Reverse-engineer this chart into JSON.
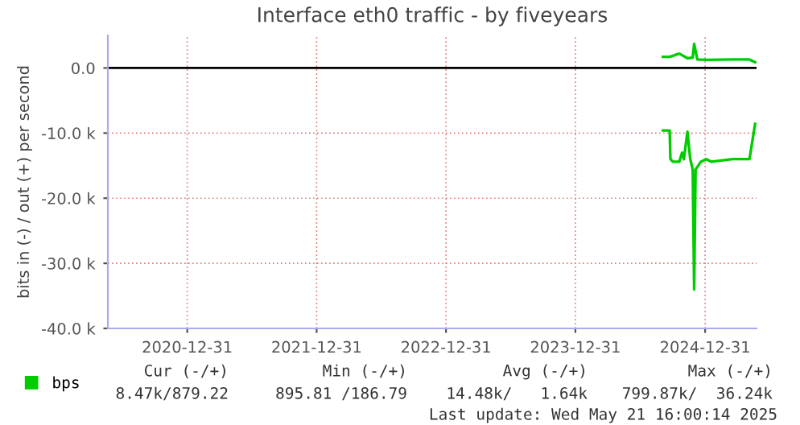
{
  "chart_data": {
    "type": "line",
    "title": "Interface eth0 traffic - by fiveyears",
    "ylabel": "bits in (-) / out (+) per second",
    "xlim": [
      "2020-05-21",
      "2025-05-25"
    ],
    "xticks": [
      "2020-12-31",
      "2021-12-31",
      "2022-12-31",
      "2023-12-31",
      "2024-12-31"
    ],
    "ylim": [
      -40000,
      5000
    ],
    "yticks": [
      {
        "value": 0,
        "label": "0.0"
      },
      {
        "value": -10000,
        "label": "-10.0 k"
      },
      {
        "value": -20000,
        "label": "-20.0 k"
      },
      {
        "value": -30000,
        "label": "-30.0 k"
      },
      {
        "value": -40000,
        "label": "-40.0 k"
      }
    ],
    "grid": true,
    "legend": "bottom left",
    "ref_lines": [
      {
        "axis": "y",
        "value": 0,
        "color": "#000000"
      }
    ],
    "series": [
      {
        "name": "bps",
        "color": "#00cc00",
        "x": [
          "2024-09-03",
          "2024-09-22",
          "2024-09-24",
          "2024-10-01",
          "2024-10-19",
          "2024-10-27",
          "2024-11-01",
          "2024-11-11",
          "2024-11-19",
          "2024-11-26",
          "2024-11-30",
          "2024-12-04",
          "2024-12-19",
          "2025-01-03",
          "2025-01-18",
          "2025-03-19",
          "2025-05-05",
          "2025-05-21"
        ],
        "values": [
          -9600,
          -9600,
          -14000,
          -14400,
          -14400,
          -13000,
          -14000,
          -9800,
          -14000,
          -15600,
          -34000,
          -15600,
          -14400,
          -14000,
          -14400,
          -14000,
          -14000,
          -8600
        ]
      },
      {
        "color": "#00cc00",
        "x": [
          "2024-09-03",
          "2024-09-22",
          "2024-10-19",
          "2024-11-11",
          "2024-11-26",
          "2024-11-30",
          "2024-12-09",
          "2025-01-03",
          "2025-03-19",
          "2025-05-05",
          "2025-05-21"
        ],
        "values": [
          1700,
          1700,
          2200,
          1500,
          1600,
          3700,
          1300,
          1250,
          1300,
          1300,
          880
        ]
      }
    ],
    "annotations": [
      "Cur (-/+)",
      "Min (-/+)",
      "Avg (-/+)",
      "Max (-/+)",
      "8.47k/879.22",
      "895.81 /186.79",
      "14.48k/   1.64k",
      "799.87k/  36.24k",
      "Last update: Wed May 21 16:00:14 2025"
    ]
  }
}
